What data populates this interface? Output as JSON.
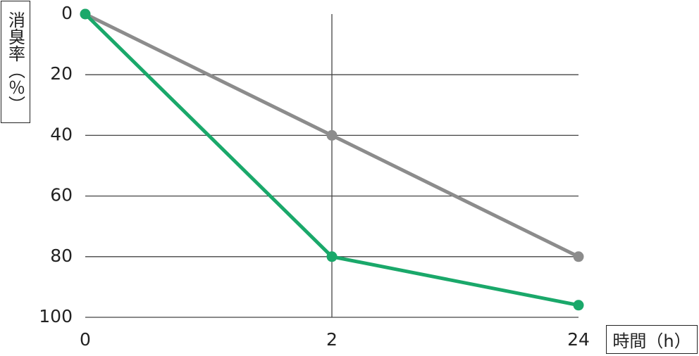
{
  "chart_data": {
    "type": "line",
    "x_label": "時間（h）",
    "y_label": "消臭率（％）",
    "categories": [
      "0",
      "2",
      "24"
    ],
    "series": [
      {
        "color": "#8c8c8c",
        "values": [
          0,
          40,
          80
        ]
      },
      {
        "color": "#1aa86a",
        "values": [
          0,
          80,
          96
        ]
      }
    ],
    "ylim": [
      0,
      100
    ],
    "yticks": [
      0,
      20,
      40,
      60,
      80,
      100
    ],
    "y_inverted": true,
    "grid": true
  }
}
